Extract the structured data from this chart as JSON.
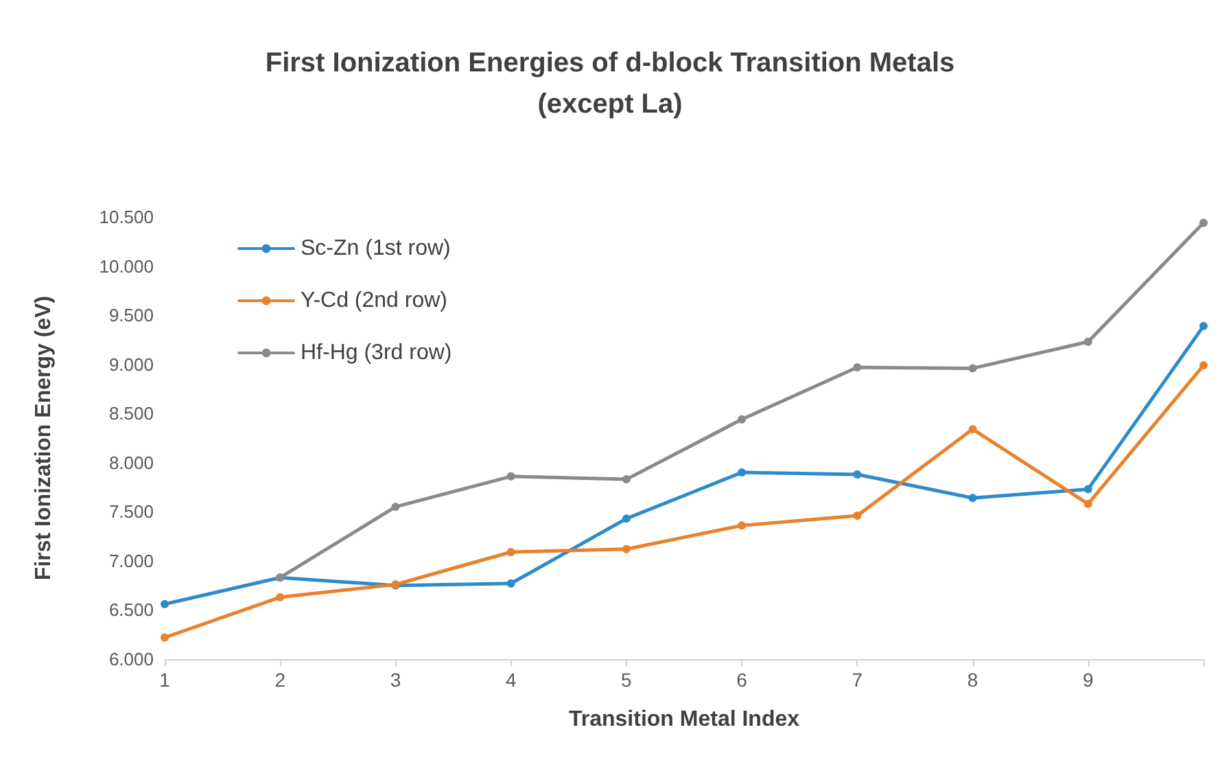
{
  "chart_data": {
    "type": "line",
    "title": "First Ionization Energies of d-block Transition Metals\n(except La)",
    "xlabel": "Transition Metal Index",
    "ylabel": "First Ionization Energy (eV)",
    "x": [
      1,
      2,
      3,
      4,
      5,
      6,
      7,
      8,
      9,
      10
    ],
    "series": [
      {
        "name": "Sc-Zn (1st row)",
        "color": "#2e8bc9",
        "values": [
          6.56,
          6.83,
          6.75,
          6.77,
          7.43,
          7.9,
          7.88,
          7.64,
          7.73,
          9.39
        ]
      },
      {
        "name": "Y-Cd (2nd row)",
        "color": "#e8822c",
        "values": [
          6.22,
          6.63,
          6.76,
          7.09,
          7.12,
          7.36,
          7.46,
          8.34,
          7.58,
          8.99
        ]
      },
      {
        "name": "Hf-Hg (3rd row)",
        "color": "#8a8a8a",
        "values": [
          null,
          6.83,
          7.55,
          7.86,
          7.83,
          8.44,
          8.97,
          8.96,
          9.23,
          10.44
        ]
      }
    ],
    "xlim": [
      1,
      10
    ],
    "xticks": [
      1,
      2,
      3,
      4,
      5,
      6,
      7,
      8,
      9,
      {
        "value": 10,
        "label": null
      }
    ],
    "ylim": [
      6,
      10.5
    ],
    "yticks": [
      {
        "value": 6,
        "label": "6.000"
      },
      {
        "value": 6.5,
        "label": "6.500"
      },
      {
        "value": 7,
        "label": "7.000"
      },
      {
        "value": 7.5,
        "label": "7.500"
      },
      {
        "value": 8,
        "label": "8.000"
      },
      {
        "value": 8.5,
        "label": "8.500"
      },
      {
        "value": 9,
        "label": "9.000"
      },
      {
        "value": 9.5,
        "label": "9.500"
      },
      {
        "value": 10,
        "label": "10.000"
      },
      {
        "value": 10.5,
        "label": "10.500"
      }
    ],
    "grid": false,
    "legend": "top left",
    "marker": "circle",
    "line_style": "solid"
  }
}
